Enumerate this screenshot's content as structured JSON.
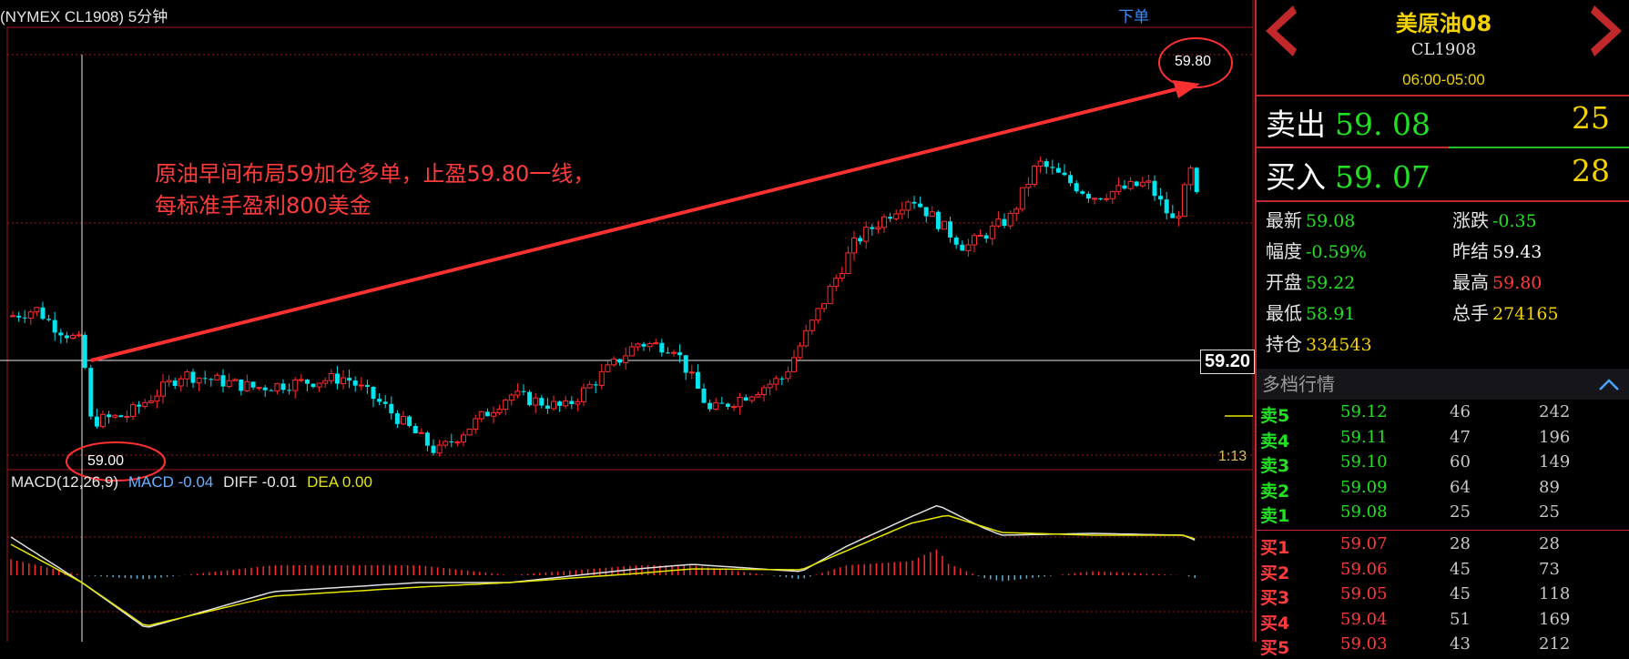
{
  "chart": {
    "title": "(NYMEX CL1908) 5分钟",
    "order_link": "下单",
    "annotation_line1": "原油早间布局59加仓多单，止盈59.80一线，",
    "annotation_line2": "每标准手盈利800美金",
    "high_label": "59.80",
    "low_label": "59.00",
    "current_price_tag": "59.20",
    "time_tag": "1:13",
    "colors": {
      "up": "#ff2b2b",
      "down": "#00e5ee",
      "macd_line": "#e0e0e0",
      "dea_line": "#e6e600",
      "annotation": "#ff3b3b"
    }
  },
  "macd": {
    "label": "MACD(12,26,9)",
    "macd_text": "MACD -0.04",
    "diff_text": "DIFF -0.01",
    "dea_text": "DEA 0.00"
  },
  "panel": {
    "name": "美原油08",
    "code": "CL1908",
    "session": "06:00-05:00",
    "sell_label": "卖出",
    "sell_price": "59. 08",
    "sell_qty": "25",
    "buy_label": "买入",
    "buy_price": "59. 07",
    "buy_qty": "28",
    "stats": [
      {
        "label": "最新",
        "value": "59.08",
        "color": "#22e022"
      },
      {
        "label": "涨跌",
        "value": "-0.35",
        "color": "#22e022"
      },
      {
        "label": "幅度",
        "value": "-0.59%",
        "color": "#22e022"
      },
      {
        "label": "昨结",
        "value": "59.43",
        "color": "#ffffff"
      },
      {
        "label": "开盘",
        "value": "59.22",
        "color": "#22e022"
      },
      {
        "label": "最高",
        "value": "59.80",
        "color": "#ff3b3b"
      },
      {
        "label": "最低",
        "value": "58.91",
        "color": "#22e022"
      },
      {
        "label": "总手",
        "value": "274165",
        "color": "#f2d200"
      },
      {
        "label": "持仓",
        "value": "334543",
        "color": "#f2d200"
      }
    ],
    "depth_title": "多档行情",
    "asks": [
      {
        "label": "卖5",
        "price": "59.12",
        "vol": "46",
        "cum": "242"
      },
      {
        "label": "卖4",
        "price": "59.11",
        "vol": "47",
        "cum": "196"
      },
      {
        "label": "卖3",
        "price": "59.10",
        "vol": "60",
        "cum": "149"
      },
      {
        "label": "卖2",
        "price": "59.09",
        "vol": "64",
        "cum": "89"
      },
      {
        "label": "卖1",
        "price": "59.08",
        "vol": "25",
        "cum": "25"
      }
    ],
    "bids": [
      {
        "label": "买1",
        "price": "59.07",
        "vol": "28",
        "cum": "28"
      },
      {
        "label": "买2",
        "price": "59.06",
        "vol": "45",
        "cum": "73"
      },
      {
        "label": "买3",
        "price": "59.05",
        "vol": "45",
        "cum": "118"
      },
      {
        "label": "买4",
        "price": "59.04",
        "vol": "51",
        "cum": "169"
      },
      {
        "label": "买5",
        "price": "59.03",
        "vol": "43",
        "cum": "212"
      }
    ]
  }
}
